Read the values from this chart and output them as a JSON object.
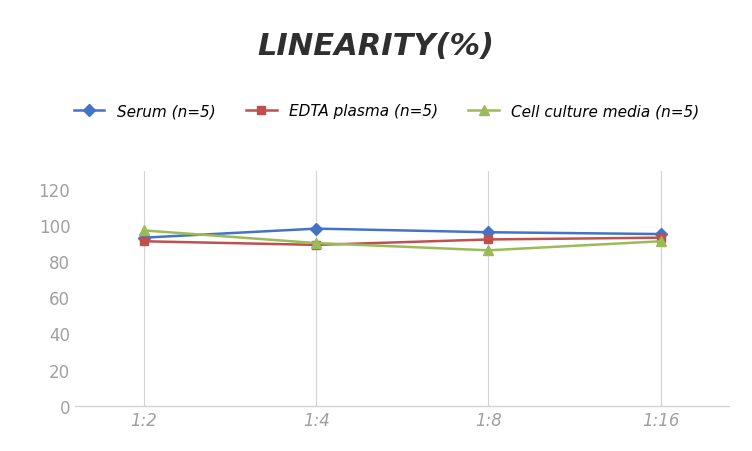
{
  "title": "LINEARITY(%)",
  "x_labels": [
    "1:2",
    "1:4",
    "1:8",
    "1:16"
  ],
  "x_positions": [
    0,
    1,
    2,
    3
  ],
  "serum": [
    93,
    98,
    96,
    95
  ],
  "edta": [
    91,
    89,
    92,
    93
  ],
  "cell": [
    97,
    90,
    86,
    91
  ],
  "serum_color": "#4472C4",
  "edta_color": "#C0504D",
  "cell_color": "#9BBB59",
  "serum_label": "Serum (n=5)",
  "edta_label": "EDTA plasma (n=5)",
  "cell_label": "Cell culture media (n=5)",
  "ylim": [
    0,
    130
  ],
  "yticks": [
    0,
    20,
    40,
    60,
    80,
    100,
    120
  ],
  "bg_color": "#FFFFFF",
  "grid_color": "#D3D3D3",
  "title_fontsize": 22,
  "legend_fontsize": 11,
  "tick_fontsize": 12,
  "tick_color": "#A0A0A0"
}
